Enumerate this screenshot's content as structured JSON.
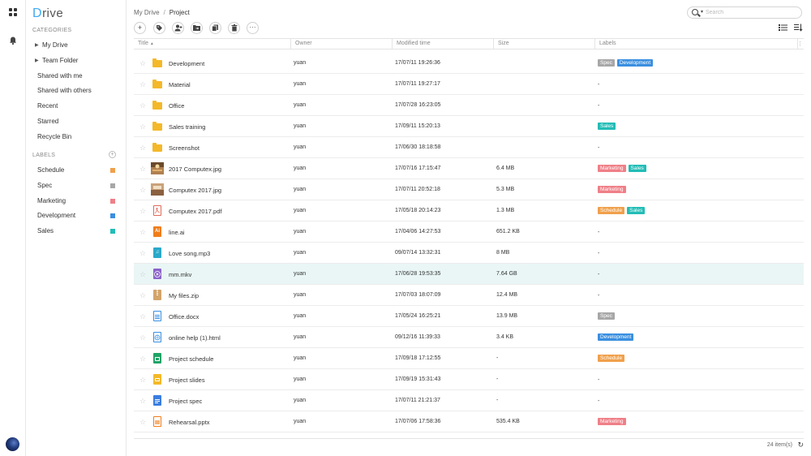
{
  "app": {
    "logo_first": "D",
    "logo_rest": "rive"
  },
  "sidebar": {
    "categories_title": "CATEGORIES",
    "categories": [
      {
        "label": "My Drive",
        "caret": true
      },
      {
        "label": "Team Folder",
        "caret": true
      },
      {
        "label": "Shared with me",
        "caret": false
      },
      {
        "label": "Shared with others",
        "caret": false
      },
      {
        "label": "Recent",
        "caret": false
      },
      {
        "label": "Starred",
        "caret": false
      },
      {
        "label": "Recycle Bin",
        "caret": false
      }
    ],
    "labels_title": "LABELS",
    "labels": [
      {
        "label": "Schedule",
        "color": "#f0a04b"
      },
      {
        "label": "Spec",
        "color": "#a7a7a7"
      },
      {
        "label": "Marketing",
        "color": "#ef7f87"
      },
      {
        "label": "Development",
        "color": "#3a8fe0"
      },
      {
        "label": "Sales",
        "color": "#22bdb6"
      }
    ]
  },
  "breadcrumb": {
    "root": "My Drive",
    "separator": "/",
    "current": "Project"
  },
  "search": {
    "placeholder": "Search"
  },
  "columns": {
    "title": "Title",
    "sort_indicator": "▲",
    "owner": "Owner",
    "modified": "Modified time",
    "size": "Size",
    "labels": "Labels"
  },
  "label_colors": {
    "Spec": "#a7a7a7",
    "Development": "#3a8fe0",
    "Sales": "#22bdb6",
    "Marketing": "#ef7f87",
    "Schedule": "#f0a04b"
  },
  "files": [
    {
      "title": "Development",
      "type": "folder",
      "owner": "yuan",
      "modified": "17/07/11 19:26:36",
      "size": "",
      "labels": [
        "Spec",
        "Development"
      ]
    },
    {
      "title": "Material",
      "type": "folder",
      "owner": "yuan",
      "modified": "17/07/11 19:27:17",
      "size": "",
      "labels": []
    },
    {
      "title": "Office",
      "type": "folder",
      "owner": "yuan",
      "modified": "17/07/28 16:23:05",
      "size": "",
      "labels": []
    },
    {
      "title": "Sales training",
      "type": "folder",
      "owner": "yuan",
      "modified": "17/09/11 15:20:13",
      "size": "",
      "labels": [
        "Sales"
      ]
    },
    {
      "title": "Screenshot",
      "type": "folder",
      "owner": "yuan",
      "modified": "17/06/30 18:18:58",
      "size": "",
      "labels": []
    },
    {
      "title": "2017 Computex.jpg",
      "type": "image1",
      "owner": "yuan",
      "modified": "17/07/16 17:15:47",
      "size": "6.4 MB",
      "labels": [
        "Marketing",
        "Sales"
      ]
    },
    {
      "title": "Computex 2017.jpg",
      "type": "image2",
      "owner": "yuan",
      "modified": "17/07/11 20:52:18",
      "size": "5.3 MB",
      "labels": [
        "Marketing"
      ]
    },
    {
      "title": "Computex 2017.pdf",
      "type": "pdf",
      "owner": "yuan",
      "modified": "17/05/18 20:14:23",
      "size": "1.3 MB",
      "labels": [
        "Schedule",
        "Sales"
      ]
    },
    {
      "title": "line.ai",
      "type": "ai",
      "owner": "yuan",
      "modified": "17/04/06 14:27:53",
      "size": "651.2 KB",
      "labels": []
    },
    {
      "title": "Love song.mp3",
      "type": "audio",
      "owner": "yuan",
      "modified": "09/07/14 13:32:31",
      "size": "8 MB",
      "labels": []
    },
    {
      "title": "mm.mkv",
      "type": "video",
      "owner": "yuan",
      "modified": "17/06/28 19:53:35",
      "size": "7.64 GB",
      "labels": [],
      "selected": true
    },
    {
      "title": "My files.zip",
      "type": "zip",
      "owner": "yuan",
      "modified": "17/07/03 18:07:09",
      "size": "12.4 MB",
      "labels": []
    },
    {
      "title": "Office.docx",
      "type": "docx",
      "owner": "yuan",
      "modified": "17/05/24 16:25:21",
      "size": "13.9 MB",
      "labels": [
        "Spec"
      ]
    },
    {
      "title": "online help (1).html",
      "type": "html",
      "owner": "yuan",
      "modified": "09/12/16 11:39:33",
      "size": "3.4 KB",
      "labels": [
        "Development"
      ]
    },
    {
      "title": "Project schedule",
      "type": "sheet",
      "owner": "yuan",
      "modified": "17/09/18 17:12:55",
      "size": "-",
      "labels": [
        "Schedule"
      ]
    },
    {
      "title": "Project slides",
      "type": "slides",
      "owner": "yuan",
      "modified": "17/09/19 15:31:43",
      "size": "-",
      "labels": []
    },
    {
      "title": "Project spec",
      "type": "gdoc",
      "owner": "yuan",
      "modified": "17/07/11 21:21:37",
      "size": "-",
      "labels": []
    },
    {
      "title": "Rehearsal.pptx",
      "type": "pptx",
      "owner": "yuan",
      "modified": "17/07/06 17:58:36",
      "size": "535.4 KB",
      "labels": [
        "Marketing"
      ]
    }
  ],
  "empty_label": "-",
  "footer": {
    "count": "24 item(s)"
  }
}
